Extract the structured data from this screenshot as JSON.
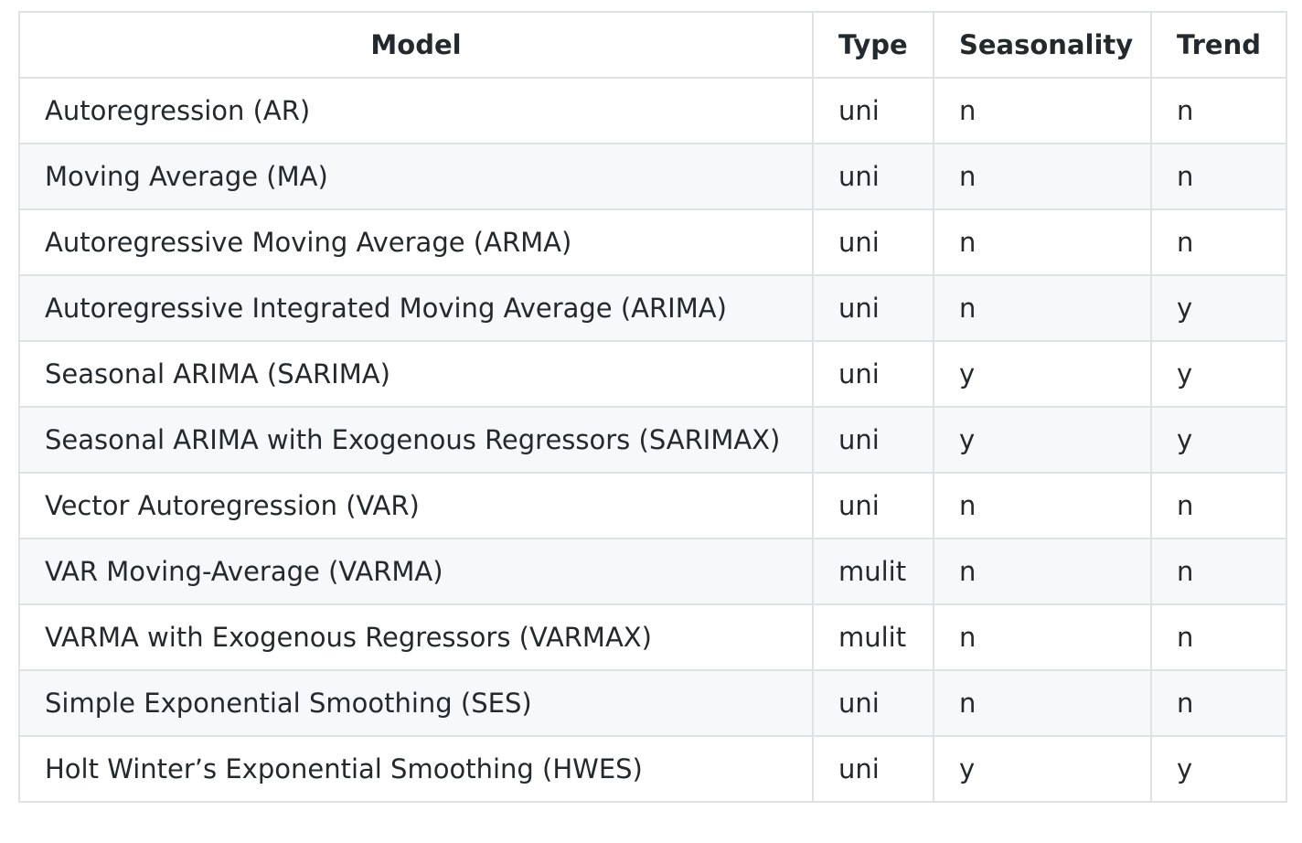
{
  "table": {
    "headers": {
      "model": "Model",
      "type": "Type",
      "seasonality": "Seasonality",
      "trend": "Trend"
    },
    "rows": [
      {
        "model": "Autoregression (AR)",
        "type": "uni",
        "seasonality": "n",
        "trend": "n"
      },
      {
        "model": "Moving Average (MA)",
        "type": "uni",
        "seasonality": "n",
        "trend": "n"
      },
      {
        "model": "Autoregressive Moving Average (ARMA)",
        "type": "uni",
        "seasonality": "n",
        "trend": "n"
      },
      {
        "model": "Autoregressive Integrated Moving Average (ARIMA)",
        "type": "uni",
        "seasonality": "n",
        "trend": "y"
      },
      {
        "model": "Seasonal ARIMA (SARIMA)",
        "type": "uni",
        "seasonality": "y",
        "trend": "y"
      },
      {
        "model": "Seasonal ARIMA with Exogenous Regressors (SARIMAX)",
        "type": "uni",
        "seasonality": "y",
        "trend": "y"
      },
      {
        "model": "Vector Autoregression (VAR)",
        "type": "uni",
        "seasonality": "n",
        "trend": "n"
      },
      {
        "model": "VAR Moving-Average (VARMA)",
        "type": "mulit",
        "seasonality": "n",
        "trend": "n"
      },
      {
        "model": "VARMA with Exogenous Regressors (VARMAX)",
        "type": "mulit",
        "seasonality": "n",
        "trend": "n"
      },
      {
        "model": "Simple Exponential Smoothing (SES)",
        "type": "uni",
        "seasonality": "n",
        "trend": "n"
      },
      {
        "model": "Holt Winter’s Exponential Smoothing (HWES)",
        "type": "uni",
        "seasonality": "y",
        "trend": "y"
      }
    ]
  }
}
